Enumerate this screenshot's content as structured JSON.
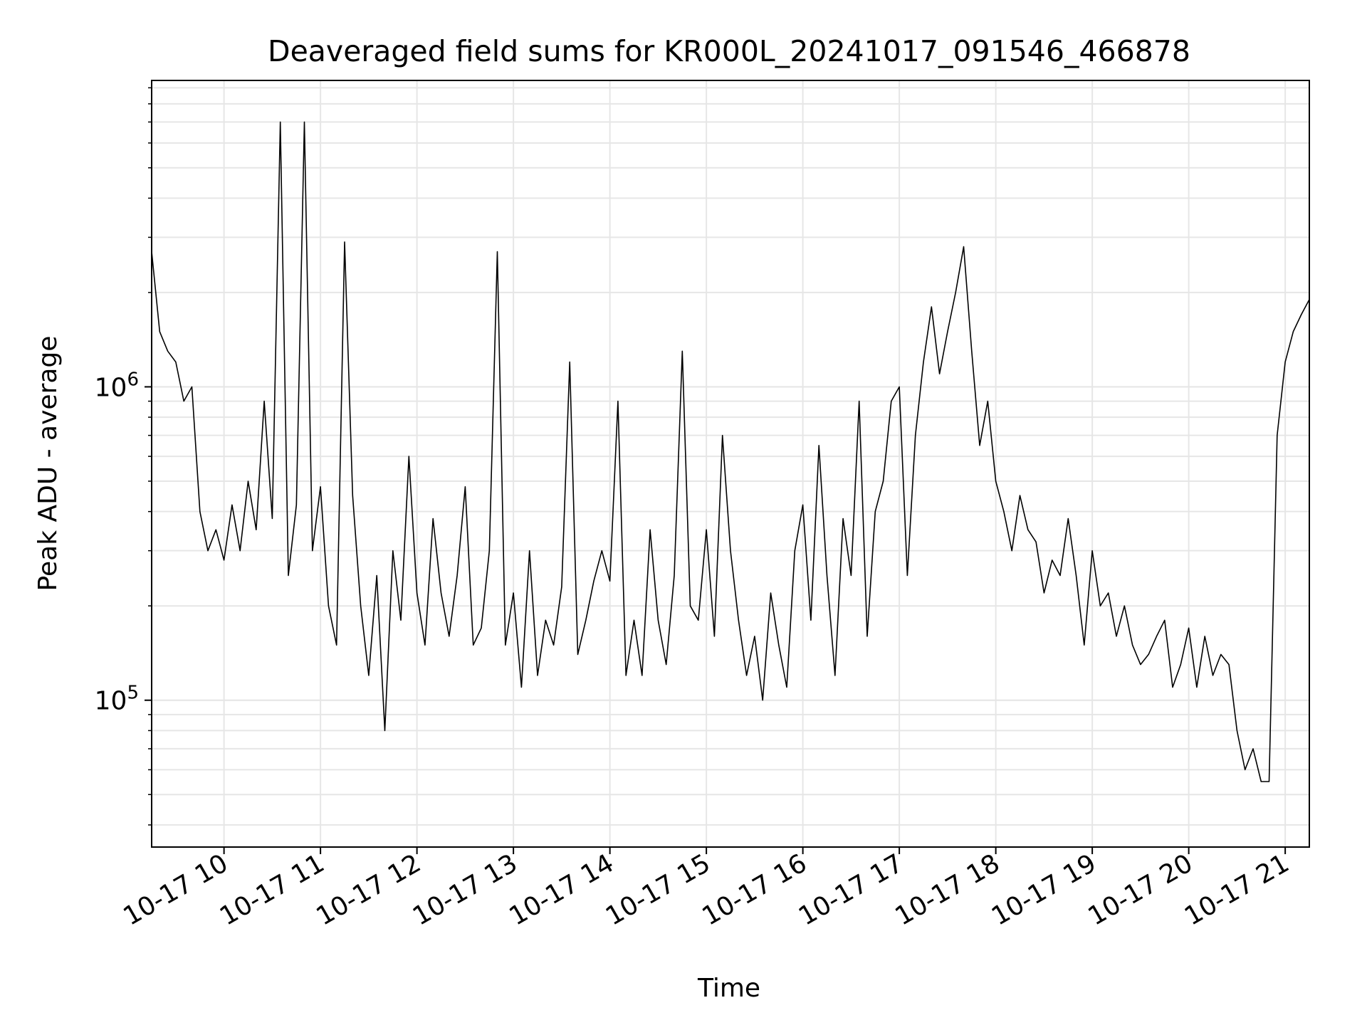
{
  "chart_data": {
    "type": "line",
    "title": "Deaveraged field sums for KR000L_20241017_091546_466878",
    "xlabel": "Time",
    "ylabel": "Peak ADU - average",
    "yscale": "log",
    "xlim": [
      "2024-10-17 09:15",
      "2024-10-17 21:15"
    ],
    "ylim": [
      34000,
      9500000
    ],
    "grid": true,
    "line_color": "#000000",
    "x_ticks": [
      "10-17 10",
      "10-17 11",
      "10-17 12",
      "10-17 13",
      "10-17 14",
      "10-17 15",
      "10-17 16",
      "10-17 17",
      "10-17 18",
      "10-17 19",
      "10-17 20",
      "10-17 21"
    ],
    "x_tick_rotation_deg": 30,
    "y_major_ticks": [
      {
        "value": 100000,
        "base": "10",
        "exponent": "5"
      },
      {
        "value": 1000000,
        "base": "10",
        "exponent": "6"
      }
    ],
    "series": [
      {
        "x": [
          "09:15",
          "09:20",
          "09:25",
          "09:30",
          "09:35",
          "09:40",
          "09:45",
          "09:50",
          "09:55",
          "10:00",
          "10:05",
          "10:10",
          "10:15",
          "10:20",
          "10:25",
          "10:30",
          "10:35",
          "10:40",
          "10:45",
          "10:50",
          "10:55",
          "11:00",
          "11:05",
          "11:10",
          "11:15",
          "11:20",
          "11:25",
          "11:30",
          "11:35",
          "11:40",
          "11:45",
          "11:50",
          "11:55",
          "12:00",
          "12:05",
          "12:10",
          "12:15",
          "12:20",
          "12:25",
          "12:30",
          "12:35",
          "12:40",
          "12:45",
          "12:50",
          "12:55",
          "13:00",
          "13:05",
          "13:10",
          "13:15",
          "13:20",
          "13:25",
          "13:30",
          "13:35",
          "13:40",
          "13:45",
          "13:50",
          "13:55",
          "14:00",
          "14:05",
          "14:10",
          "14:15",
          "14:20",
          "14:25",
          "14:30",
          "14:35",
          "14:40",
          "14:45",
          "14:50",
          "14:55",
          "15:00",
          "15:05",
          "15:10",
          "15:15",
          "15:20",
          "15:25",
          "15:30",
          "15:35",
          "15:40",
          "15:45",
          "15:50",
          "15:55",
          "16:00",
          "16:05",
          "16:10",
          "16:15",
          "16:20",
          "16:25",
          "16:30",
          "16:35",
          "16:40",
          "16:45",
          "16:50",
          "16:55",
          "17:00",
          "17:05",
          "17:10",
          "17:15",
          "17:20",
          "17:25",
          "17:30",
          "17:35",
          "17:40",
          "17:45",
          "17:50",
          "17:55",
          "18:00",
          "18:05",
          "18:10",
          "18:15",
          "18:20",
          "18:25",
          "18:30",
          "18:35",
          "18:40",
          "18:45",
          "18:50",
          "18:55",
          "19:00",
          "19:05",
          "19:10",
          "19:15",
          "19:20",
          "19:25",
          "19:30",
          "19:35",
          "19:40",
          "19:45",
          "19:50",
          "19:55",
          "20:00",
          "20:05",
          "20:10",
          "20:15",
          "20:20",
          "20:25",
          "20:30",
          "20:35",
          "20:40",
          "20:45",
          "20:50",
          "20:55",
          "21:00",
          "21:05",
          "21:10",
          "21:15"
        ],
        "values": [
          2700000,
          1500000,
          1300000,
          1200000,
          900000,
          1000000,
          400000,
          300000,
          350000,
          280000,
          420000,
          300000,
          500000,
          350000,
          900000,
          380000,
          7000000,
          250000,
          420000,
          7000000,
          300000,
          480000,
          200000,
          150000,
          2900000,
          450000,
          200000,
          120000,
          250000,
          80000,
          300000,
          180000,
          600000,
          220000,
          150000,
          380000,
          220000,
          160000,
          250000,
          480000,
          150000,
          170000,
          300000,
          2700000,
          150000,
          220000,
          110000,
          300000,
          120000,
          180000,
          150000,
          230000,
          1200000,
          140000,
          180000,
          240000,
          300000,
          240000,
          900000,
          120000,
          180000,
          120000,
          350000,
          180000,
          130000,
          250000,
          1300000,
          200000,
          180000,
          350000,
          160000,
          700000,
          300000,
          180000,
          120000,
          160000,
          100000,
          220000,
          150000,
          110000,
          300000,
          420000,
          180000,
          650000,
          250000,
          120000,
          380000,
          250000,
          900000,
          160000,
          400000,
          500000,
          900000,
          1000000,
          250000,
          700000,
          1200000,
          1800000,
          1100000,
          1500000,
          2000000,
          2800000,
          1300000,
          650000,
          900000,
          500000,
          400000,
          300000,
          450000,
          350000,
          320000,
          220000,
          280000,
          250000,
          380000,
          250000,
          150000,
          300000,
          200000,
          220000,
          160000,
          200000,
          150000,
          130000,
          140000,
          160000,
          180000,
          110000,
          130000,
          170000,
          110000,
          160000,
          120000,
          140000,
          130000,
          80000,
          60000,
          70000,
          55000,
          55000,
          700000,
          1200000,
          1500000,
          1700000,
          1900000
        ]
      }
    ]
  }
}
